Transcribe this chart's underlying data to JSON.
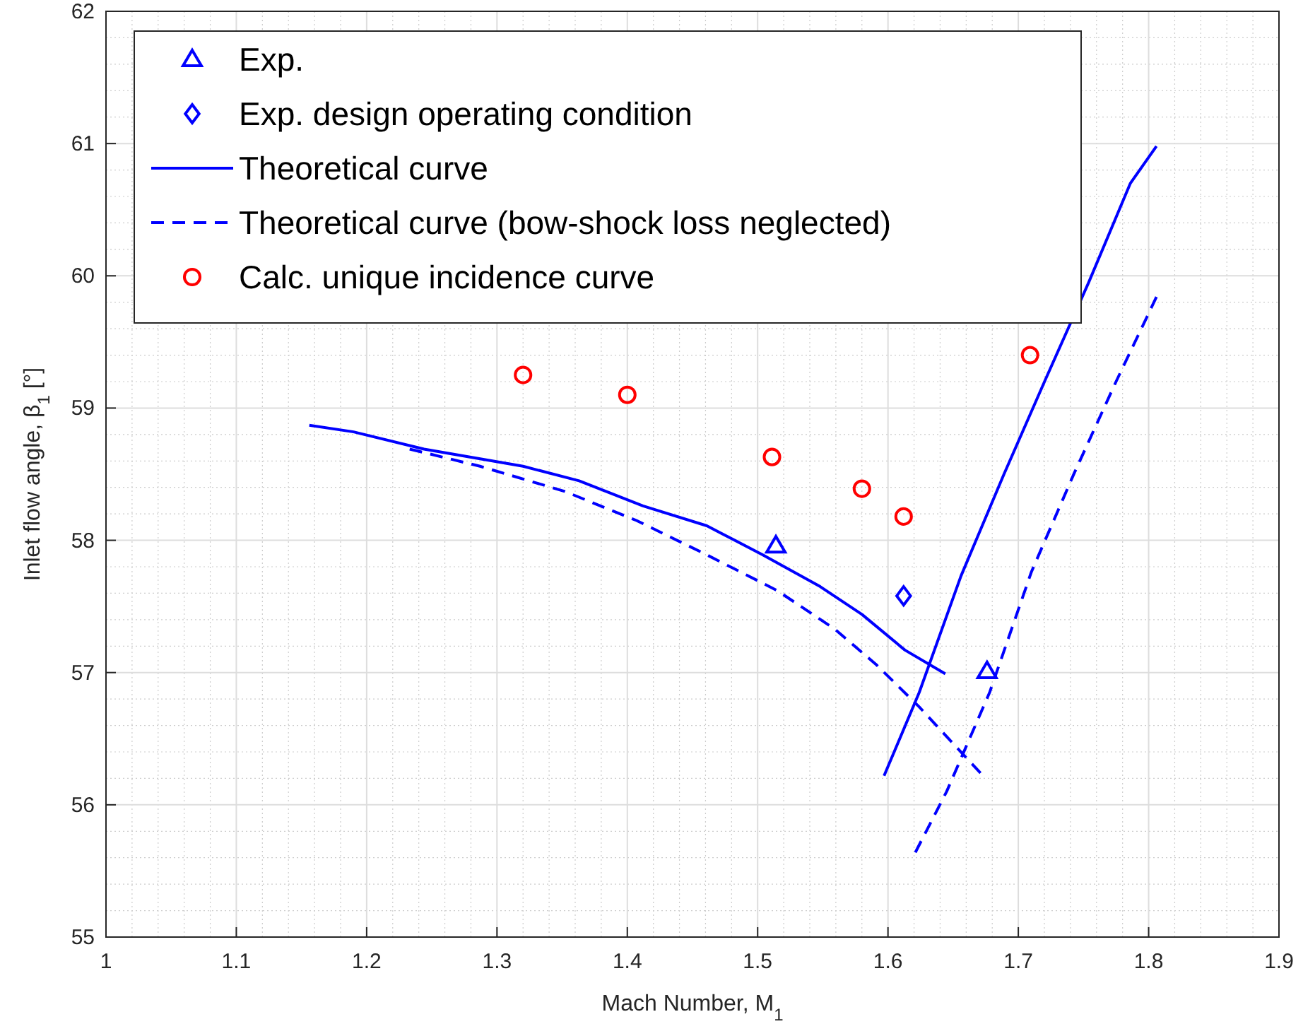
{
  "chart_data": {
    "type": "line",
    "xlabel": "Mach Number, M$_{1}$",
    "ylabel": "Inlet flow angle, β$_{1}$ [°]",
    "xlim": [
      1,
      1.9
    ],
    "xticks": [
      1,
      1.1,
      1.2,
      1.3,
      1.4,
      1.5,
      1.6,
      1.7,
      1.8,
      1.9
    ],
    "ylim": [
      55,
      62
    ],
    "yticks": [
      55,
      56,
      57,
      58,
      59,
      60,
      61,
      62
    ],
    "grid": true,
    "legend": "top left",
    "series": [
      {
        "name": "Exp.",
        "type": "scatter",
        "marker": "triangle",
        "color": "#0000ff",
        "x": [
          1.514,
          1.676
        ],
        "values": [
          57.96,
          57.01
        ]
      },
      {
        "name": "Exp. design operating condition",
        "type": "scatter",
        "marker": "diamond",
        "color": "#0000ff",
        "x": [
          1.612
        ],
        "values": [
          57.58
        ]
      },
      {
        "name": "Theoretical curve",
        "line_style": "solid",
        "color": "#0000ff",
        "x": [
          1.156,
          1.19,
          1.244,
          1.32,
          1.363,
          1.412,
          1.461,
          1.504,
          1.548,
          1.58,
          1.613,
          1.644
        ],
        "values": [
          58.87,
          58.82,
          58.69,
          58.56,
          58.45,
          58.26,
          58.11,
          57.89,
          57.65,
          57.44,
          57.17,
          56.99
        ]
      },
      {
        "line_style": "solid",
        "color": "#0000ff",
        "x": [
          1.597,
          1.624,
          1.656,
          1.689,
          1.721,
          1.754,
          1.786,
          1.806
        ],
        "values": [
          56.22,
          56.85,
          57.73,
          58.5,
          59.22,
          59.95,
          60.7,
          60.98
        ]
      },
      {
        "name": "Theoretical curve (bow-shock loss neglected)",
        "line_style": "dashed",
        "color": "#0000ff",
        "x": [
          1.233,
          1.287,
          1.352,
          1.407,
          1.461,
          1.515,
          1.559,
          1.591,
          1.624,
          1.671
        ],
        "values": [
          58.69,
          58.56,
          58.37,
          58.15,
          57.89,
          57.62,
          57.33,
          57.06,
          56.74,
          56.24
        ]
      },
      {
        "line_style": "dashed",
        "color": "#0000ff",
        "x": [
          1.621,
          1.645,
          1.678,
          1.71,
          1.743,
          1.775,
          1.806
        ],
        "values": [
          55.64,
          56.1,
          56.85,
          57.76,
          58.51,
          59.2,
          59.84
        ]
      },
      {
        "name": "Calc. unique incidence curve",
        "type": "scatter",
        "marker": "circle",
        "color": "#ff0000",
        "x": [
          1.32,
          1.4,
          1.511,
          1.58,
          1.612,
          1.709
        ],
        "values": [
          59.25,
          59.1,
          58.63,
          58.39,
          58.18,
          59.4
        ]
      }
    ]
  }
}
